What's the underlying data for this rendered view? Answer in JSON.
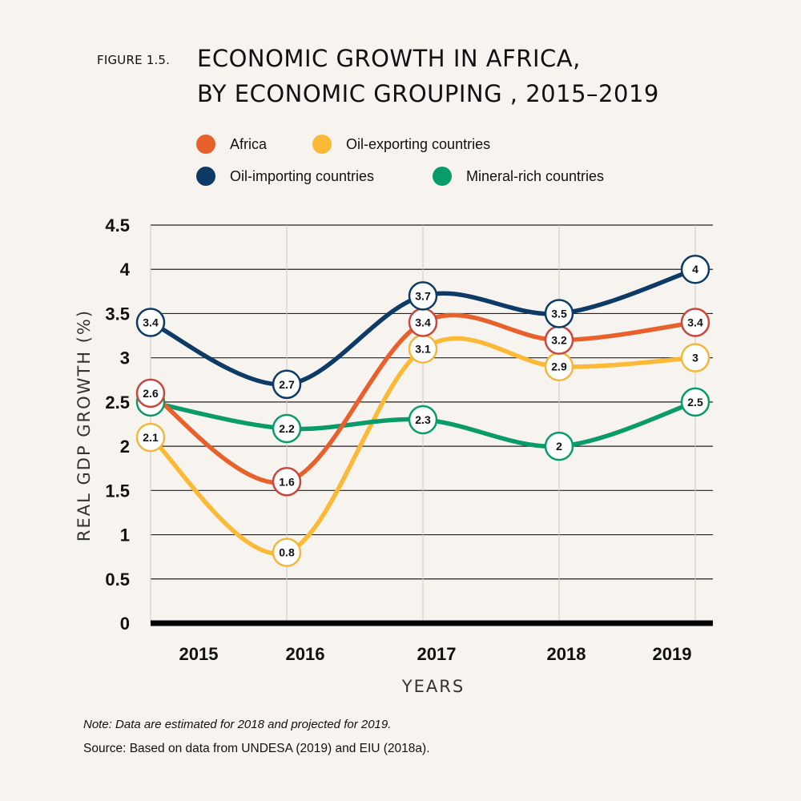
{
  "figure_label": "FIGURE 1.5.",
  "title_lines": [
    "ECONOMIC GROWTH IN AFRICA,",
    "BY ECONOMIC GROUPING , 2015–2019"
  ],
  "note": "Note: Data are estimated for 2018 and projected for 2019.",
  "source": "Source: Based on data from UNDESA (2019) and EIU (2018a).",
  "chart_data": {
    "type": "line",
    "x": [
      "2015",
      "2016",
      "2017",
      "2018",
      "2019"
    ],
    "xlabel": "YEARS",
    "ylabel": "REAL GDP GROWTH (%)",
    "ylim": [
      0,
      4.5
    ],
    "yticks": [
      "0",
      "0.5",
      "1",
      "1.5",
      "2",
      "2.5",
      "3",
      "3.5",
      "4",
      "4.5"
    ],
    "grid": "horizontal",
    "legend_position": "top",
    "series": [
      {
        "name": "Africa",
        "color": "#e8612c",
        "values": [
          2.6,
          1.6,
          3.4,
          3.2,
          3.4
        ]
      },
      {
        "name": "Oil-exporting countries",
        "color": "#fbb935",
        "values": [
          2.1,
          0.8,
          3.1,
          2.9,
          3
        ]
      },
      {
        "name": "Oil-importing countries",
        "color": "#0d3b66",
        "values": [
          3.4,
          2.7,
          3.7,
          3.5,
          4
        ]
      },
      {
        "name": "Mineral-rich countries",
        "color": "#0a9b6a",
        "values": [
          2.5,
          2.2,
          2.3,
          2,
          2.5
        ]
      }
    ],
    "label_ring_colors": {
      "Africa": "#c9473c",
      "Oil-exporting countries": "#f3b73c",
      "Oil-importing countries": "#0d3b66",
      "Mineral-rich countries": "#0a9b6a"
    }
  }
}
